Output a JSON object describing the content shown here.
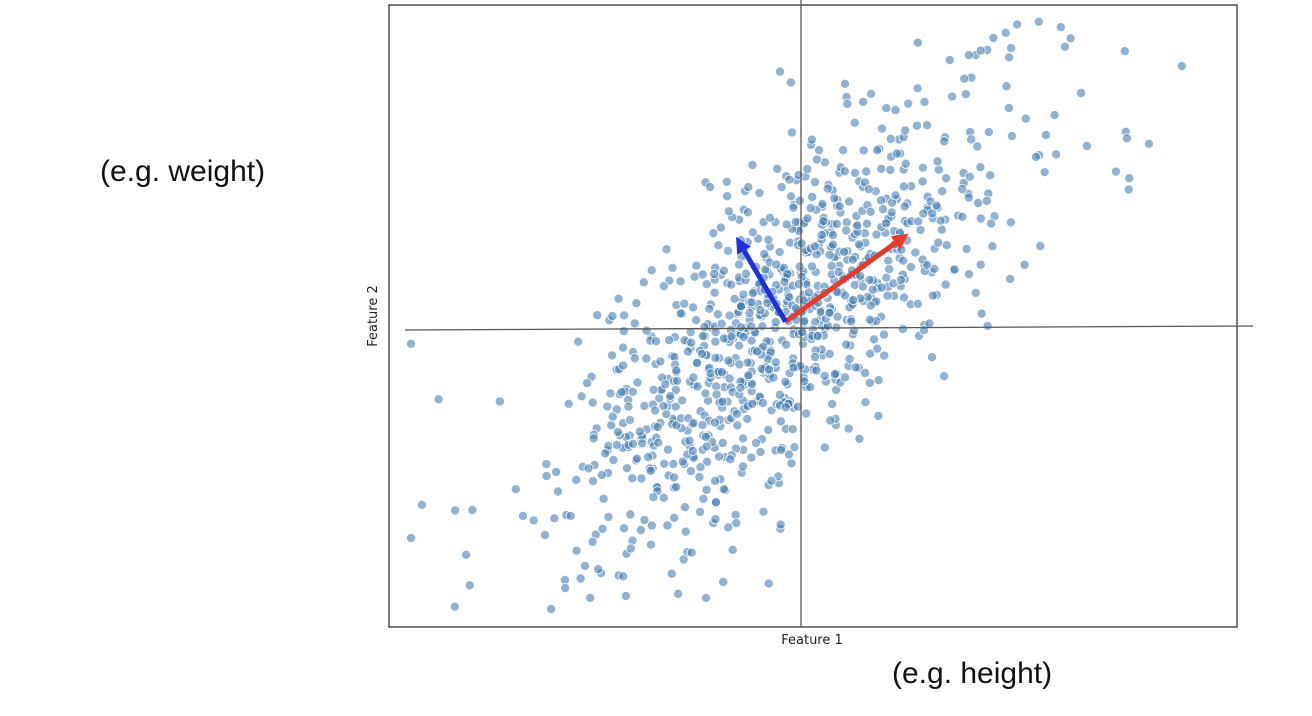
{
  "annotations": {
    "y_note": "(e.g. weight)",
    "x_note": "(e.g. height)"
  },
  "chart_data": {
    "type": "scatter",
    "title": "",
    "xlabel": "Feature 1",
    "ylabel": "Feature 2",
    "xlim": [
      -3.6,
      4.1
    ],
    "ylim": [
      -2.75,
      2.85
    ],
    "grid": false,
    "axis_ticks": false,
    "point_color": "#4a7fb0",
    "point_edge": "#ffffff",
    "seed": 7,
    "n_points": 1000,
    "cov": [
      [
        1.0,
        0.72
      ],
      [
        0.72,
        1.0
      ]
    ],
    "point_overrides": [
      [
        -3.4,
        -0.2
      ],
      [
        -3.4,
        -1.95
      ],
      [
        -3.15,
        -0.7
      ],
      [
        -3.3,
        -1.65
      ],
      [
        -2.9,
        -2.1
      ],
      [
        -2.0,
        -2.4
      ],
      [
        -1.7,
        -2.23
      ],
      [
        -0.05,
        2.25
      ],
      [
        2.0,
        2.6
      ],
      [
        2.3,
        2.7
      ],
      [
        2.5,
        2.65
      ],
      [
        3.6,
        2.3
      ],
      [
        3.3,
        1.6
      ],
      [
        3.0,
        1.35
      ],
      [
        -3.0,
        -1.7
      ],
      [
        -1.95,
        -1.75
      ],
      [
        1.2,
        2.1
      ],
      [
        3.1,
        1.65
      ]
    ],
    "components": [
      {
        "name": "",
        "color": "#e8392d",
        "vector": [
          1.2,
          0.85
        ]
      },
      {
        "name": "",
        "color": "#1f2fe0",
        "vector": [
          -0.5,
          0.85
        ]
      }
    ]
  }
}
